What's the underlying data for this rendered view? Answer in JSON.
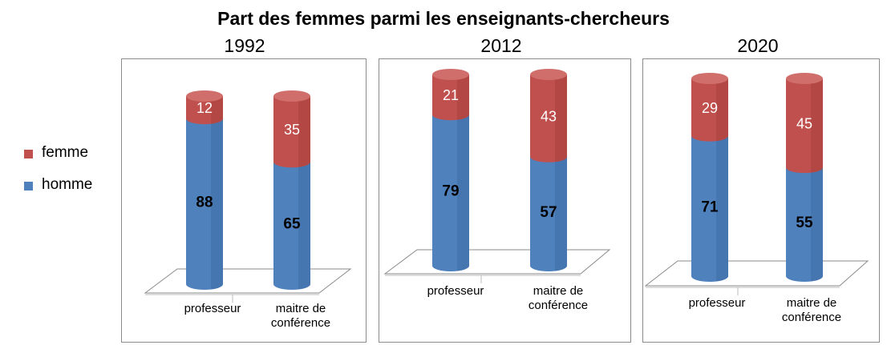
{
  "chart_data": {
    "type": "bar",
    "title": "Part des femmes parmi les enseignants-chercheurs",
    "categories": [
      "professeur",
      "maitre de conférence"
    ],
    "legend": [
      {
        "name": "femme",
        "color": "#c0504d"
      },
      {
        "name": "homme",
        "color": "#4f81bd"
      }
    ],
    "legend_placement": "left",
    "stacked": true,
    "ylim": [
      0,
      100
    ],
    "grid": false,
    "panels": [
      {
        "year": "1992",
        "series": [
          {
            "name": "homme",
            "values": [
              88,
              65
            ]
          },
          {
            "name": "femme",
            "values": [
              12,
              35
            ]
          }
        ]
      },
      {
        "year": "2012",
        "series": [
          {
            "name": "homme",
            "values": [
              79,
              57
            ]
          },
          {
            "name": "femme",
            "values": [
              21,
              43
            ]
          }
        ]
      },
      {
        "year": "2020",
        "series": [
          {
            "name": "homme",
            "values": [
              71,
              55
            ]
          },
          {
            "name": "femme",
            "values": [
              29,
              45
            ]
          }
        ]
      }
    ]
  }
}
